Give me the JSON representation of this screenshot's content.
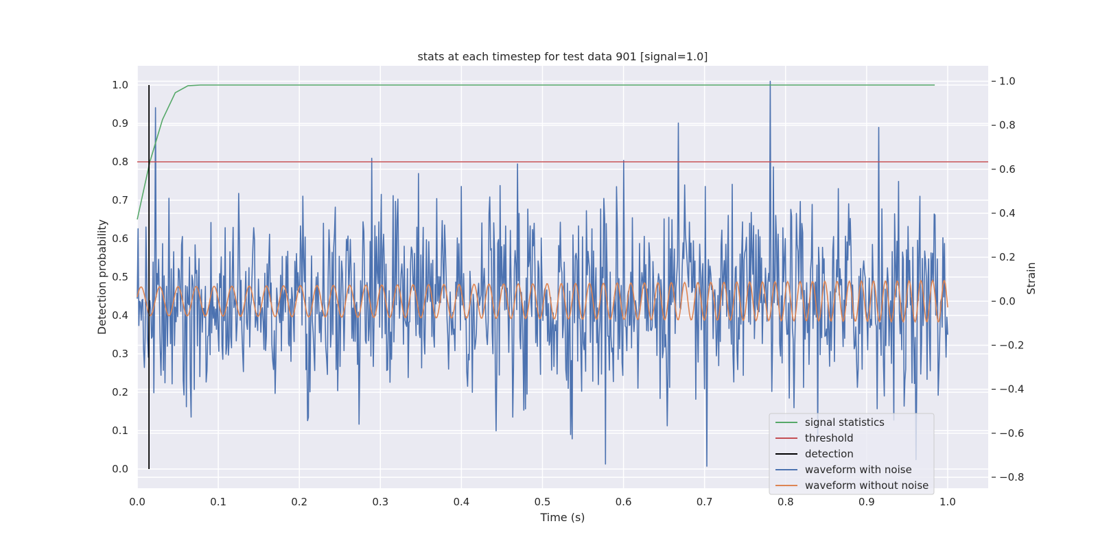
{
  "chart_data": {
    "type": "line",
    "title": "stats at each timestep for test data 901 [signal=1.0]",
    "xlabel": "Time (s)",
    "ylabel_left": "Detection probability",
    "ylabel_right": "Strain",
    "xlim": [
      0.0,
      1.05
    ],
    "ylim_left": [
      -0.05,
      1.05
    ],
    "ylim_right": [
      -0.85,
      1.07
    ],
    "grid": true,
    "legend_location": "lower-right",
    "x_ticks": [
      "0.0",
      "0.1",
      "0.2",
      "0.3",
      "0.4",
      "0.5",
      "0.6",
      "0.7",
      "0.8",
      "0.9",
      "1.0"
    ],
    "y_ticks_left": [
      "0.0",
      "0.1",
      "0.2",
      "0.3",
      "0.4",
      "0.5",
      "0.6",
      "0.7",
      "0.8",
      "0.9",
      "1.0"
    ],
    "y_ticks_right": [
      "−0.8",
      "−0.6",
      "−0.4",
      "−0.2",
      "0.0",
      "0.2",
      "0.4",
      "0.6",
      "0.8",
      "1.0"
    ],
    "y_tick_values_right": [
      -0.8,
      -0.6,
      -0.4,
      -0.2,
      0.0,
      0.2,
      0.4,
      0.6,
      0.8,
      1.0
    ],
    "series": [
      {
        "name": "signal statistics",
        "axis": "left",
        "color": "#55a868",
        "x": [
          0.0,
          0.0156,
          0.0312,
          0.0469,
          0.0625,
          0.0781,
          0.1,
          0.2,
          0.3,
          0.4,
          0.5,
          0.6,
          0.7,
          0.8,
          0.9,
          0.984
        ],
        "y": [
          0.65,
          0.8,
          0.91,
          0.98,
          0.998,
          1.0,
          1.0,
          1.0,
          1.0,
          1.0,
          1.0,
          1.0,
          1.0,
          1.0,
          1.0,
          1.0
        ]
      },
      {
        "name": "threshold",
        "axis": "left",
        "color": "#c44e52",
        "x": [
          0.0,
          1.05
        ],
        "y": [
          0.8,
          0.8
        ]
      },
      {
        "name": "detection",
        "axis": "left",
        "color": "#000000",
        "x": [
          0.0145,
          0.0145
        ],
        "y": [
          0.0,
          1.0
        ]
      },
      {
        "name": "waveform with noise",
        "axis": "right",
        "color": "#4c72b0",
        "x_start": 0.0,
        "x_end": 1.0,
        "samples": 1024,
        "peaks": [
          {
            "x": 0.022,
            "y": 0.88
          },
          {
            "x": 0.289,
            "y": 0.65
          },
          {
            "x": 0.578,
            "y": -0.74
          },
          {
            "x": 0.6675,
            "y": 0.81
          },
          {
            "x": 0.703,
            "y": -0.75
          },
          {
            "x": 0.781,
            "y": 1.0
          },
          {
            "x": 0.915,
            "y": 0.79
          },
          {
            "x": 0.6,
            "y": 0.64
          }
        ],
        "noise_std": 0.21
      },
      {
        "name": "waveform without noise",
        "axis": "right",
        "color": "#dd8452",
        "x_start": 0.0,
        "x_end": 1.0,
        "samples": 1024,
        "frequency_start_hz": 43,
        "frequency_end_hz": 70,
        "amplitude_start": 0.065,
        "amplitude_end": 0.095
      }
    ]
  }
}
